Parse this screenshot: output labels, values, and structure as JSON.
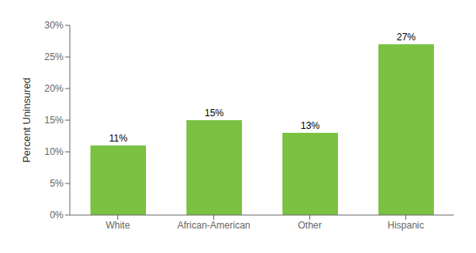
{
  "chart_data": {
    "type": "bar",
    "ylabel": "Percent Uninsured",
    "categories": [
      "White",
      "African-American",
      "Other",
      "Hispanic"
    ],
    "values": [
      11,
      15,
      13,
      27
    ],
    "value_labels": [
      "11%",
      "15%",
      "13%",
      "27%"
    ],
    "data_labels": true,
    "color": "#7bc142",
    "ylim": [
      0,
      30
    ],
    "yticks": [
      {
        "value": 0,
        "label": "0%"
      },
      {
        "value": 5,
        "label": "5%"
      },
      {
        "value": 10,
        "label": "10%"
      },
      {
        "value": 15,
        "label": "15%"
      },
      {
        "value": 20,
        "label": "20%"
      },
      {
        "value": 25,
        "label": "25%"
      },
      {
        "value": 30,
        "label": "30%"
      }
    ],
    "grid": false
  }
}
